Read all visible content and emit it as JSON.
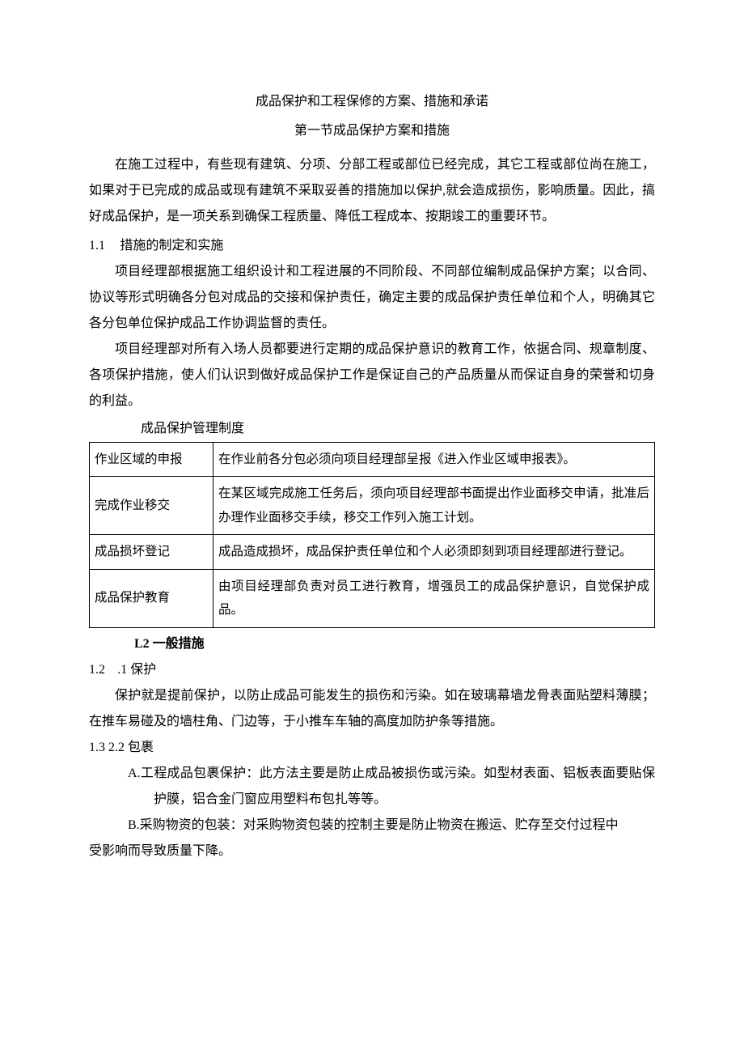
{
  "title": "成品保护和工程保修的方案、措施和承诺",
  "subtitle": "第一节成品保护方案和措施",
  "intro": "在施工过程中，有些现有建筑、分项、分部工程或部位已经完成，其它工程或部位尚在施工，如果对于已完成的成品或现有建筑不采取妥善的措施加以保护,就会造成损伤，影响质量。因此，搞好成品保护，是一项关系到确保工程质量、降低工程成本、按期竣工的重要环节。",
  "h1_num": "1.1",
  "h1_label": "措施的制定和实施",
  "p1": "项目经理部根据施工组织设计和工程进展的不同阶段、不同部位编制成品保护方案；以合同、协议等形式明确各分包对成品的交接和保护责任，确定主要的成品保护责任单位和个人，明确其它各分包单位保护成品工作协调监督的责任。",
  "p2": "项目经理部对所有入场人员都要进行定期的成品保护意识的教育工作，依据合同、规章制度、各项保护措施，使人们认识到做好成品保护工作是保证自己的产品质量从而保证自身的荣誉和切身的利益。",
  "table_label": "成品保护管理制度",
  "table": {
    "rows": [
      {
        "left": "作业区域的申报",
        "right": "在作业前各分包必须向项目经理部呈报《进入作业区域申报表》。",
        "rcls": "right-top",
        "lcls": "vbottom"
      },
      {
        "left": "完成作业移交",
        "right": "在某区域完成施工任务后，须向项目经理部书面提出作业面移交申请，批准后办理作业面移交手续，移交工作列入施工计划。",
        "rcls": "",
        "lcls": ""
      },
      {
        "left": "成品损坏登记",
        "right": "成品造成损坏，成品保护责任单位和个人必须即刻到项目经理部进行登记。",
        "rcls": "right-bottom",
        "lcls": "vtop"
      },
      {
        "left": "成品保护教育",
        "right": "由项目经理部负责对员工进行教育，增强员工的成品保护意识，自觉保护成品。",
        "rcls": "right-bottom",
        "lcls": "vtop"
      }
    ]
  },
  "h2": "L2 一般措施",
  "h3_num": "1.2",
  "h3_label": ".1 保护",
  "p3": "保护就是提前保护，以防止成品可能发生的损伤和污染。如在玻璃幕墙龙骨表面贴塑料薄膜；在推车易碰及的墙柱角、门边等，于小推车车轴的高度加防护条等措施。",
  "h4": "1.3  2.2 包裹",
  "itemA": "A.工程成品包裹保护：此方法主要是防止成品被损伤或污染。如型材表面、铝板表面要贴保护膜，铝合金门窗应用塑料布包扎等等。",
  "itemB1": "B.采购物资的包装：对采购物资包装的控制主要是防止物资在搬运、贮存至交付过程中",
  "itemB2": "受影响而导致质量下降。"
}
